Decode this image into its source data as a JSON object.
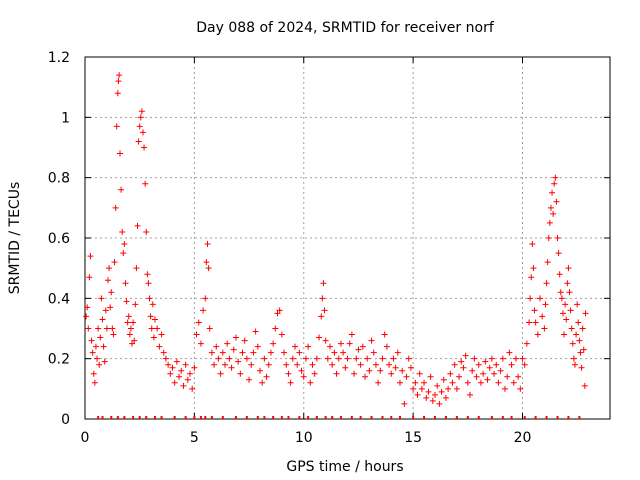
{
  "chart_data": {
    "type": "scatter",
    "title": "Day 088 of 2024, SRMTID for receiver norf",
    "xlabel": "GPS time / hours",
    "ylabel": "SRMTID / TECUs",
    "xlim": [
      0,
      24
    ],
    "ylim": [
      0,
      1.2
    ],
    "x_ticks": [
      0,
      5,
      10,
      15,
      20
    ],
    "x_tick_labels": [
      "0",
      "5",
      "10",
      "15",
      "20"
    ],
    "y_ticks": [
      0,
      0.2,
      0.4,
      0.6,
      0.8,
      1.0,
      1.2
    ],
    "y_tick_labels": [
      "0",
      "0.2",
      "0.4",
      "0.6",
      "0.8",
      "1",
      "1.2"
    ],
    "grid": true,
    "marker": "+",
    "series": [
      {
        "name": "SRMTID",
        "color": "#ff0000",
        "points": [
          [
            0.05,
            0.34
          ],
          [
            0.1,
            0.37
          ],
          [
            0.15,
            0.3
          ],
          [
            0.2,
            0.47
          ],
          [
            0.25,
            0.54
          ],
          [
            0.3,
            0.26
          ],
          [
            0.35,
            0.22
          ],
          [
            0.4,
            0.15
          ],
          [
            0.45,
            0.12
          ],
          [
            0.5,
            0.24
          ],
          [
            0.55,
            0.2
          ],
          [
            0.6,
            0.3
          ],
          [
            0.65,
            0.18
          ],
          [
            0.7,
            0.27
          ],
          [
            0.75,
            0.4
          ],
          [
            0.8,
            0.33
          ],
          [
            0.85,
            0.24
          ],
          [
            0.9,
            0.19
          ],
          [
            0.95,
            0.36
          ],
          [
            1.0,
            0.3
          ],
          [
            1.05,
            0.46
          ],
          [
            1.1,
            0.5
          ],
          [
            1.15,
            0.37
          ],
          [
            1.2,
            0.42
          ],
          [
            1.25,
            0.3
          ],
          [
            1.3,
            0.28
          ],
          [
            1.35,
            0.52
          ],
          [
            1.4,
            0.7
          ],
          [
            1.45,
            0.97
          ],
          [
            1.5,
            1.08
          ],
          [
            1.53,
            1.12
          ],
          [
            1.56,
            1.14
          ],
          [
            1.6,
            0.88
          ],
          [
            1.65,
            0.76
          ],
          [
            1.7,
            0.62
          ],
          [
            1.75,
            0.55
          ],
          [
            1.8,
            0.58
          ],
          [
            1.85,
            0.45
          ],
          [
            1.9,
            0.39
          ],
          [
            1.95,
            0.32
          ],
          [
            2.0,
            0.34
          ],
          [
            2.05,
            0.28
          ],
          [
            2.1,
            0.3
          ],
          [
            2.15,
            0.25
          ],
          [
            2.2,
            0.32
          ],
          [
            2.25,
            0.26
          ],
          [
            2.3,
            0.38
          ],
          [
            2.35,
            0.5
          ],
          [
            2.4,
            0.64
          ],
          [
            2.45,
            0.92
          ],
          [
            2.5,
            0.97
          ],
          [
            2.55,
            1.0
          ],
          [
            2.6,
            1.02
          ],
          [
            2.65,
            0.95
          ],
          [
            2.7,
            0.9
          ],
          [
            2.75,
            0.78
          ],
          [
            2.8,
            0.62
          ],
          [
            2.85,
            0.48
          ],
          [
            2.9,
            0.45
          ],
          [
            2.95,
            0.4
          ],
          [
            3.0,
            0.34
          ],
          [
            3.05,
            0.3
          ],
          [
            3.1,
            0.38
          ],
          [
            3.15,
            0.27
          ],
          [
            3.2,
            0.33
          ],
          [
            3.3,
            0.3
          ],
          [
            3.4,
            0.24
          ],
          [
            3.5,
            0.28
          ],
          [
            3.6,
            0.22
          ],
          [
            3.7,
            0.2
          ],
          [
            3.8,
            0.18
          ],
          [
            3.9,
            0.15
          ],
          [
            4.0,
            0.17
          ],
          [
            4.1,
            0.12
          ],
          [
            4.2,
            0.19
          ],
          [
            4.3,
            0.14
          ],
          [
            4.4,
            0.16
          ],
          [
            4.5,
            0.11
          ],
          [
            4.6,
            0.18
          ],
          [
            4.7,
            0.13
          ],
          [
            4.8,
            0.15
          ],
          [
            4.9,
            0.1
          ],
          [
            5.0,
            0.17
          ],
          [
            5.1,
            0.28
          ],
          [
            5.2,
            0.32
          ],
          [
            5.3,
            0.25
          ],
          [
            5.4,
            0.36
          ],
          [
            5.5,
            0.4
          ],
          [
            5.55,
            0.52
          ],
          [
            5.6,
            0.58
          ],
          [
            5.65,
            0.5
          ],
          [
            5.7,
            0.3
          ],
          [
            5.8,
            0.22
          ],
          [
            5.9,
            0.18
          ],
          [
            6.0,
            0.24
          ],
          [
            6.1,
            0.2
          ],
          [
            6.2,
            0.15
          ],
          [
            6.3,
            0.22
          ],
          [
            6.4,
            0.18
          ],
          [
            6.5,
            0.25
          ],
          [
            6.6,
            0.2
          ],
          [
            6.7,
            0.17
          ],
          [
            6.8,
            0.23
          ],
          [
            6.9,
            0.27
          ],
          [
            7.0,
            0.19
          ],
          [
            7.1,
            0.15
          ],
          [
            7.2,
            0.22
          ],
          [
            7.3,
            0.26
          ],
          [
            7.4,
            0.2
          ],
          [
            7.5,
            0.13
          ],
          [
            7.6,
            0.18
          ],
          [
            7.7,
            0.22
          ],
          [
            7.8,
            0.29
          ],
          [
            7.9,
            0.24
          ],
          [
            8.0,
            0.16
          ],
          [
            8.1,
            0.12
          ],
          [
            8.2,
            0.2
          ],
          [
            8.3,
            0.14
          ],
          [
            8.4,
            0.18
          ],
          [
            8.5,
            0.22
          ],
          [
            8.6,
            0.25
          ],
          [
            8.7,
            0.3
          ],
          [
            8.8,
            0.35
          ],
          [
            8.9,
            0.36
          ],
          [
            9.0,
            0.28
          ],
          [
            9.1,
            0.22
          ],
          [
            9.2,
            0.18
          ],
          [
            9.3,
            0.15
          ],
          [
            9.4,
            0.12
          ],
          [
            9.5,
            0.2
          ],
          [
            9.6,
            0.24
          ],
          [
            9.7,
            0.18
          ],
          [
            9.8,
            0.22
          ],
          [
            9.9,
            0.16
          ],
          [
            10.0,
            0.14
          ],
          [
            10.1,
            0.2
          ],
          [
            10.2,
            0.24
          ],
          [
            10.3,
            0.12
          ],
          [
            10.4,
            0.18
          ],
          [
            10.5,
            0.15
          ],
          [
            10.6,
            0.2
          ],
          [
            10.7,
            0.27
          ],
          [
            10.8,
            0.34
          ],
          [
            10.85,
            0.4
          ],
          [
            10.9,
            0.45
          ],
          [
            10.95,
            0.36
          ],
          [
            11.0,
            0.26
          ],
          [
            11.1,
            0.2
          ],
          [
            11.2,
            0.24
          ],
          [
            11.3,
            0.18
          ],
          [
            11.4,
            0.22
          ],
          [
            11.5,
            0.15
          ],
          [
            11.6,
            0.2
          ],
          [
            11.7,
            0.25
          ],
          [
            11.8,
            0.22
          ],
          [
            11.9,
            0.17
          ],
          [
            12.0,
            0.2
          ],
          [
            12.1,
            0.25
          ],
          [
            12.2,
            0.28
          ],
          [
            12.3,
            0.15
          ],
          [
            12.4,
            0.2
          ],
          [
            12.5,
            0.23
          ],
          [
            12.6,
            0.18
          ],
          [
            12.7,
            0.24
          ],
          [
            12.8,
            0.14
          ],
          [
            12.9,
            0.2
          ],
          [
            13.0,
            0.16
          ],
          [
            13.1,
            0.26
          ],
          [
            13.2,
            0.22
          ],
          [
            13.3,
            0.18
          ],
          [
            13.4,
            0.12
          ],
          [
            13.5,
            0.16
          ],
          [
            13.6,
            0.2
          ],
          [
            13.7,
            0.28
          ],
          [
            13.8,
            0.24
          ],
          [
            13.9,
            0.18
          ],
          [
            14.0,
            0.15
          ],
          [
            14.1,
            0.2
          ],
          [
            14.2,
            0.17
          ],
          [
            14.3,
            0.22
          ],
          [
            14.4,
            0.12
          ],
          [
            14.5,
            0.16
          ],
          [
            14.6,
            0.05
          ],
          [
            14.7,
            0.14
          ],
          [
            14.8,
            0.2
          ],
          [
            14.9,
            0.17
          ],
          [
            15.0,
            0.1
          ],
          [
            15.1,
            0.12
          ],
          [
            15.2,
            0.08
          ],
          [
            15.3,
            0.15
          ],
          [
            15.4,
            0.1
          ],
          [
            15.5,
            0.12
          ],
          [
            15.6,
            0.07
          ],
          [
            15.7,
            0.09
          ],
          [
            15.8,
            0.14
          ],
          [
            15.9,
            0.06
          ],
          [
            16.0,
            0.08
          ],
          [
            16.1,
            0.11
          ],
          [
            16.2,
            0.05
          ],
          [
            16.3,
            0.09
          ],
          [
            16.4,
            0.13
          ],
          [
            16.5,
            0.07
          ],
          [
            16.6,
            0.1
          ],
          [
            16.7,
            0.15
          ],
          [
            16.8,
            0.12
          ],
          [
            16.9,
            0.18
          ],
          [
            17.0,
            0.1
          ],
          [
            17.1,
            0.14
          ],
          [
            17.2,
            0.19
          ],
          [
            17.3,
            0.17
          ],
          [
            17.4,
            0.21
          ],
          [
            17.5,
            0.12
          ],
          [
            17.6,
            0.08
          ],
          [
            17.7,
            0.16
          ],
          [
            17.8,
            0.2
          ],
          [
            17.9,
            0.14
          ],
          [
            18.0,
            0.18
          ],
          [
            18.1,
            0.12
          ],
          [
            18.2,
            0.15
          ],
          [
            18.3,
            0.19
          ],
          [
            18.4,
            0.13
          ],
          [
            18.5,
            0.17
          ],
          [
            18.6,
            0.2
          ],
          [
            18.7,
            0.15
          ],
          [
            18.8,
            0.18
          ],
          [
            18.9,
            0.12
          ],
          [
            19.0,
            0.16
          ],
          [
            19.1,
            0.2
          ],
          [
            19.2,
            0.1
          ],
          [
            19.3,
            0.14
          ],
          [
            19.4,
            0.22
          ],
          [
            19.5,
            0.18
          ],
          [
            19.6,
            0.12
          ],
          [
            19.7,
            0.2
          ],
          [
            19.8,
            0.14
          ],
          [
            19.9,
            0.1
          ],
          [
            20.0,
            0.2
          ],
          [
            20.1,
            0.18
          ],
          [
            20.2,
            0.25
          ],
          [
            20.3,
            0.32
          ],
          [
            20.35,
            0.4
          ],
          [
            20.4,
            0.47
          ],
          [
            20.45,
            0.58
          ],
          [
            20.5,
            0.5
          ],
          [
            20.55,
            0.36
          ],
          [
            20.6,
            0.32
          ],
          [
            20.7,
            0.28
          ],
          [
            20.8,
            0.4
          ],
          [
            20.9,
            0.34
          ],
          [
            21.0,
            0.3
          ],
          [
            21.05,
            0.38
          ],
          [
            21.1,
            0.45
          ],
          [
            21.15,
            0.52
          ],
          [
            21.2,
            0.6
          ],
          [
            21.25,
            0.65
          ],
          [
            21.3,
            0.7
          ],
          [
            21.35,
            0.75
          ],
          [
            21.4,
            0.68
          ],
          [
            21.45,
            0.78
          ],
          [
            21.5,
            0.8
          ],
          [
            21.55,
            0.72
          ],
          [
            21.6,
            0.6
          ],
          [
            21.65,
            0.55
          ],
          [
            21.7,
            0.48
          ],
          [
            21.75,
            0.42
          ],
          [
            21.8,
            0.4
          ],
          [
            21.85,
            0.35
          ],
          [
            21.9,
            0.28
          ],
          [
            21.95,
            0.38
          ],
          [
            22.0,
            0.33
          ],
          [
            22.05,
            0.45
          ],
          [
            22.1,
            0.5
          ],
          [
            22.15,
            0.42
          ],
          [
            22.2,
            0.36
          ],
          [
            22.25,
            0.3
          ],
          [
            22.3,
            0.25
          ],
          [
            22.35,
            0.2
          ],
          [
            22.4,
            0.18
          ],
          [
            22.45,
            0.28
          ],
          [
            22.5,
            0.38
          ],
          [
            22.55,
            0.32
          ],
          [
            22.6,
            0.26
          ],
          [
            22.65,
            0.22
          ],
          [
            22.7,
            0.17
          ],
          [
            22.75,
            0.3
          ],
          [
            22.8,
            0.23
          ],
          [
            22.85,
            0.11
          ],
          [
            22.88,
            0.35
          ]
        ]
      }
    ],
    "baseline_markers": [
      0.6,
      0.8,
      1.2,
      1.5,
      1.8,
      2.2,
      2.5,
      2.8,
      3.2,
      3.5,
      4.1,
      4.6,
      5.0,
      5.3,
      5.5,
      5.8,
      6.3,
      6.9,
      7.4,
      7.9,
      8.2,
      8.6,
      9.0,
      9.3,
      9.8,
      10.2,
      10.6,
      11.0,
      11.3,
      11.7,
      12.2,
      12.6,
      13.1,
      13.6,
      14.0,
      14.4,
      15.0,
      15.5,
      16.0,
      16.5,
      17.0,
      17.5,
      18.0,
      18.6,
      19.1,
      19.5,
      20.1,
      20.6,
      21.1,
      21.6,
      22.1,
      22.6
    ]
  }
}
